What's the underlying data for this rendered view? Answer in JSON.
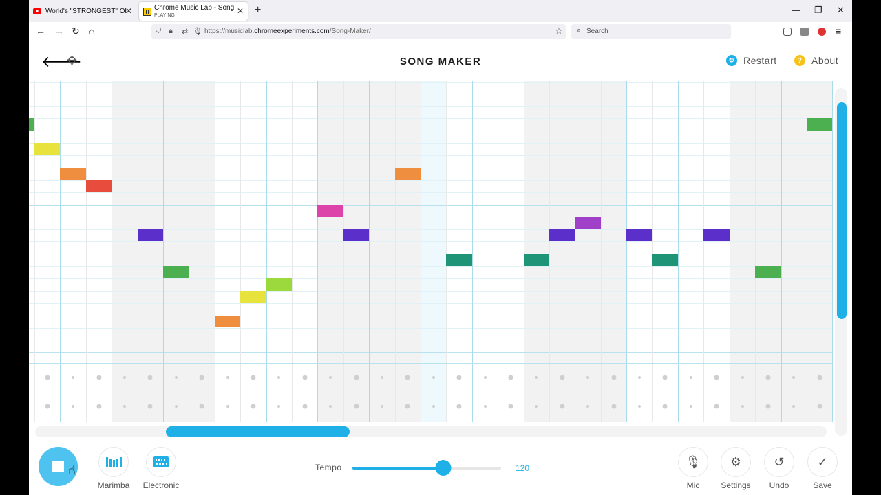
{
  "browser": {
    "tabs": [
      {
        "title": "World's \"STRONGEST\" Objects",
        "icon": "youtube-icon"
      },
      {
        "title": "Chrome Music Lab - Song Maker",
        "subtitle": "PLAYING",
        "icon": "chrome-music-lab-icon"
      }
    ],
    "url_prefix": "https://musiclab.",
    "url_domain": "chromeexperiments.com",
    "url_path": "/Song-Maker/",
    "search_placeholder": "Search"
  },
  "app": {
    "title": "SONG MAKER",
    "restart_label": "Restart",
    "about_label": "About",
    "about_glyph": "?",
    "accent_color": "#1eb0e7",
    "about_color": "#f6c21c"
  },
  "grid": {
    "columns": 31,
    "rows": 23,
    "beats_per_bar": 4,
    "bars_visible_start_offset": 1,
    "playhead_column": 15,
    "notes": [
      {
        "col": -1,
        "row": 3,
        "color": "#4caf50"
      },
      {
        "col": 0,
        "row": 5,
        "color": "#e8e23c"
      },
      {
        "col": 1,
        "row": 7,
        "color": "#ef8e3f"
      },
      {
        "col": 2,
        "row": 8,
        "color": "#e84c3d"
      },
      {
        "col": 4,
        "row": 12,
        "color": "#5b2fc9"
      },
      {
        "col": 5,
        "row": 15,
        "color": "#4caf50"
      },
      {
        "col": 7,
        "row": 19,
        "color": "#ef8e3f"
      },
      {
        "col": 8,
        "row": 17,
        "color": "#e8e23c"
      },
      {
        "col": 9,
        "row": 16,
        "color": "#9bd93c"
      },
      {
        "col": 11,
        "row": 10,
        "color": "#dd44aa"
      },
      {
        "col": 12,
        "row": 12,
        "color": "#5b2fc9"
      },
      {
        "col": 14,
        "row": 7,
        "color": "#ef8e3f"
      },
      {
        "col": 16,
        "row": 14,
        "color": "#1f9477"
      },
      {
        "col": 19,
        "row": 14,
        "color": "#1f9477"
      },
      {
        "col": 20,
        "row": 12,
        "color": "#5b2fc9"
      },
      {
        "col": 21,
        "row": 11,
        "color": "#a040c8"
      },
      {
        "col": 23,
        "row": 12,
        "color": "#5b2fc9"
      },
      {
        "col": 24,
        "row": 14,
        "color": "#1f9477"
      },
      {
        "col": 26,
        "row": 12,
        "color": "#5b2fc9"
      },
      {
        "col": 28,
        "row": 15,
        "color": "#4caf50"
      },
      {
        "col": 30,
        "row": 3,
        "color": "#4caf50"
      }
    ]
  },
  "toolbar": {
    "marimba_label": "Marimba",
    "electronic_label": "Electronic",
    "tempo_label": "Tempo",
    "tempo_value": "120",
    "tempo_fraction": 0.61,
    "mic_label": "Mic",
    "settings_label": "Settings",
    "undo_label": "Undo",
    "save_label": "Save"
  }
}
